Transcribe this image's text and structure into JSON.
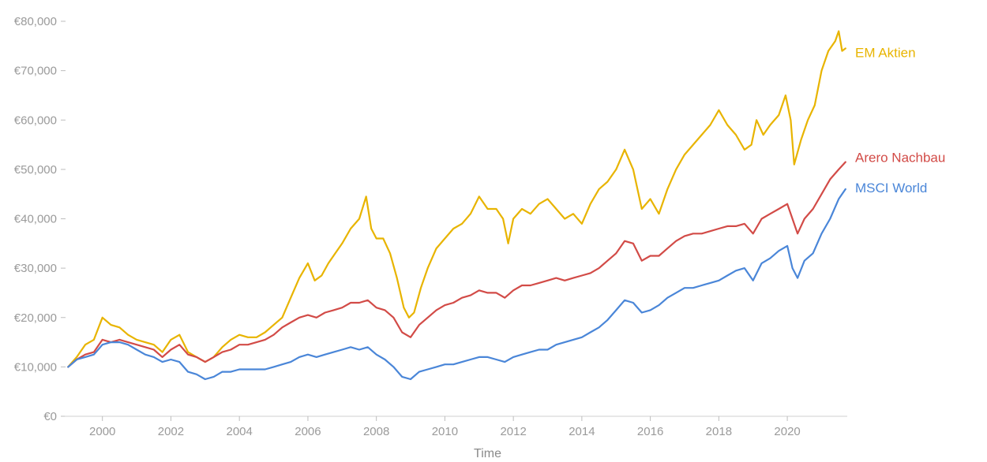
{
  "chart_data": {
    "type": "line",
    "xlabel": "Time",
    "ylabel": "",
    "xlim": [
      1998.9,
      2021.75
    ],
    "ylim": [
      0,
      80000
    ],
    "x_ticks": [
      2000,
      2002,
      2004,
      2006,
      2008,
      2010,
      2012,
      2014,
      2016,
      2018,
      2020
    ],
    "x_tick_labels": [
      "2000",
      "2002",
      "2004",
      "2006",
      "2008",
      "2010",
      "2012",
      "2014",
      "2016",
      "2018",
      "2020"
    ],
    "y_ticks": [
      0,
      10000,
      20000,
      30000,
      40000,
      50000,
      60000,
      70000,
      80000
    ],
    "y_tick_labels": [
      "€0",
      "€10,000",
      "€20,000",
      "€30,000",
      "€40,000",
      "€50,000",
      "€60,000",
      "€70,000",
      "€80,000"
    ],
    "grid": false,
    "legend": "inline-right",
    "series": [
      {
        "name": "EM Aktien",
        "color": "#e8b400",
        "x": [
          1999.0,
          1999.25,
          1999.5,
          1999.75,
          2000.0,
          2000.25,
          2000.5,
          2000.75,
          2001.0,
          2001.25,
          2001.5,
          2001.75,
          2002.0,
          2002.25,
          2002.5,
          2002.75,
          2003.0,
          2003.25,
          2003.5,
          2003.75,
          2004.0,
          2004.25,
          2004.5,
          2004.75,
          2005.0,
          2005.25,
          2005.5,
          2005.75,
          2006.0,
          2006.2,
          2006.4,
          2006.6,
          2006.8,
          2007.0,
          2007.25,
          2007.5,
          2007.7,
          2007.85,
          2008.0,
          2008.2,
          2008.4,
          2008.6,
          2008.8,
          2008.95,
          2009.1,
          2009.3,
          2009.5,
          2009.75,
          2010.0,
          2010.25,
          2010.5,
          2010.75,
          2011.0,
          2011.25,
          2011.5,
          2011.7,
          2011.85,
          2012.0,
          2012.25,
          2012.5,
          2012.75,
          2013.0,
          2013.25,
          2013.5,
          2013.75,
          2014.0,
          2014.25,
          2014.5,
          2014.75,
          2015.0,
          2015.25,
          2015.5,
          2015.75,
          2016.0,
          2016.25,
          2016.5,
          2016.75,
          2017.0,
          2017.25,
          2017.5,
          2017.75,
          2018.0,
          2018.25,
          2018.5,
          2018.75,
          2018.95,
          2019.1,
          2019.3,
          2019.5,
          2019.75,
          2019.95,
          2020.1,
          2020.2,
          2020.4,
          2020.6,
          2020.8,
          2021.0,
          2021.2,
          2021.4,
          2021.5,
          2021.6,
          2021.7
        ],
        "values": [
          10000,
          12000,
          14500,
          15500,
          20000,
          18500,
          18000,
          16500,
          15500,
          15000,
          14500,
          13000,
          15500,
          16500,
          13000,
          12000,
          11000,
          12000,
          14000,
          15500,
          16500,
          16000,
          16000,
          17000,
          18500,
          20000,
          24000,
          28000,
          31000,
          27500,
          28500,
          31000,
          33000,
          35000,
          38000,
          40000,
          44500,
          38000,
          36000,
          36000,
          33000,
          28000,
          22000,
          20000,
          21000,
          26000,
          30000,
          34000,
          36000,
          38000,
          39000,
          41000,
          44500,
          42000,
          42000,
          40000,
          35000,
          40000,
          42000,
          41000,
          43000,
          44000,
          42000,
          40000,
          41000,
          39000,
          43000,
          46000,
          47500,
          50000,
          54000,
          50000,
          42000,
          44000,
          41000,
          46000,
          50000,
          53000,
          55000,
          57000,
          59000,
          62000,
          59000,
          57000,
          54000,
          55000,
          60000,
          57000,
          59000,
          61000,
          65000,
          60000,
          51000,
          56000,
          60000,
          63000,
          70000,
          74000,
          76000,
          78000,
          74000,
          74500
        ]
      },
      {
        "name": "Arero Nachbau",
        "color": "#d24b47",
        "x": [
          1999.0,
          1999.25,
          1999.5,
          1999.75,
          2000.0,
          2000.25,
          2000.5,
          2000.75,
          2001.0,
          2001.25,
          2001.5,
          2001.75,
          2002.0,
          2002.25,
          2002.5,
          2002.75,
          2003.0,
          2003.25,
          2003.5,
          2003.75,
          2004.0,
          2004.25,
          2004.5,
          2004.75,
          2005.0,
          2005.25,
          2005.5,
          2005.75,
          2006.0,
          2006.25,
          2006.5,
          2006.75,
          2007.0,
          2007.25,
          2007.5,
          2007.75,
          2008.0,
          2008.25,
          2008.5,
          2008.75,
          2009.0,
          2009.25,
          2009.5,
          2009.75,
          2010.0,
          2010.25,
          2010.5,
          2010.75,
          2011.0,
          2011.25,
          2011.5,
          2011.75,
          2012.0,
          2012.25,
          2012.5,
          2012.75,
          2013.0,
          2013.25,
          2013.5,
          2013.75,
          2014.0,
          2014.25,
          2014.5,
          2014.75,
          2015.0,
          2015.25,
          2015.5,
          2015.75,
          2016.0,
          2016.25,
          2016.5,
          2016.75,
          2017.0,
          2017.25,
          2017.5,
          2017.75,
          2018.0,
          2018.25,
          2018.5,
          2018.75,
          2019.0,
          2019.25,
          2019.5,
          2019.75,
          2020.0,
          2020.15,
          2020.3,
          2020.5,
          2020.75,
          2021.0,
          2021.25,
          2021.5,
          2021.7
        ],
        "values": [
          10000,
          11500,
          12500,
          13000,
          15500,
          15000,
          15500,
          15000,
          14500,
          14000,
          13500,
          12000,
          13500,
          14500,
          12500,
          12000,
          11000,
          12000,
          13000,
          13500,
          14500,
          14500,
          15000,
          15500,
          16500,
          18000,
          19000,
          20000,
          20500,
          20000,
          21000,
          21500,
          22000,
          23000,
          23000,
          23500,
          22000,
          21500,
          20000,
          17000,
          16000,
          18500,
          20000,
          21500,
          22500,
          23000,
          24000,
          24500,
          25500,
          25000,
          25000,
          24000,
          25500,
          26500,
          26500,
          27000,
          27500,
          28000,
          27500,
          28000,
          28500,
          29000,
          30000,
          31500,
          33000,
          35500,
          35000,
          31500,
          32500,
          32500,
          34000,
          35500,
          36500,
          37000,
          37000,
          37500,
          38000,
          38500,
          38500,
          39000,
          37000,
          40000,
          41000,
          42000,
          43000,
          40000,
          37000,
          40000,
          42000,
          45000,
          48000,
          50000,
          51500
        ]
      },
      {
        "name": "MSCI World",
        "color": "#4a86d8",
        "x": [
          1999.0,
          1999.25,
          1999.5,
          1999.75,
          2000.0,
          2000.25,
          2000.5,
          2000.75,
          2001.0,
          2001.25,
          2001.5,
          2001.75,
          2002.0,
          2002.25,
          2002.5,
          2002.75,
          2003.0,
          2003.25,
          2003.5,
          2003.75,
          2004.0,
          2004.25,
          2004.5,
          2004.75,
          2005.0,
          2005.25,
          2005.5,
          2005.75,
          2006.0,
          2006.25,
          2006.5,
          2006.75,
          2007.0,
          2007.25,
          2007.5,
          2007.75,
          2008.0,
          2008.25,
          2008.5,
          2008.75,
          2009.0,
          2009.25,
          2009.5,
          2009.75,
          2010.0,
          2010.25,
          2010.5,
          2010.75,
          2011.0,
          2011.25,
          2011.5,
          2011.75,
          2012.0,
          2012.25,
          2012.5,
          2012.75,
          2013.0,
          2013.25,
          2013.5,
          2013.75,
          2014.0,
          2014.25,
          2014.5,
          2014.75,
          2015.0,
          2015.25,
          2015.5,
          2015.75,
          2016.0,
          2016.25,
          2016.5,
          2016.75,
          2017.0,
          2017.25,
          2017.5,
          2017.75,
          2018.0,
          2018.25,
          2018.5,
          2018.75,
          2019.0,
          2019.25,
          2019.5,
          2019.75,
          2020.0,
          2020.15,
          2020.3,
          2020.5,
          2020.75,
          2021.0,
          2021.25,
          2021.5,
          2021.7
        ],
        "values": [
          10000,
          11500,
          12000,
          12500,
          14500,
          15000,
          15000,
          14500,
          13500,
          12500,
          12000,
          11000,
          11500,
          11000,
          9000,
          8500,
          7500,
          8000,
          9000,
          9000,
          9500,
          9500,
          9500,
          9500,
          10000,
          10500,
          11000,
          12000,
          12500,
          12000,
          12500,
          13000,
          13500,
          14000,
          13500,
          14000,
          12500,
          11500,
          10000,
          8000,
          7500,
          9000,
          9500,
          10000,
          10500,
          10500,
          11000,
          11500,
          12000,
          12000,
          11500,
          11000,
          12000,
          12500,
          13000,
          13500,
          13500,
          14500,
          15000,
          15500,
          16000,
          17000,
          18000,
          19500,
          21500,
          23500,
          23000,
          21000,
          21500,
          22500,
          24000,
          25000,
          26000,
          26000,
          26500,
          27000,
          27500,
          28500,
          29500,
          30000,
          27500,
          31000,
          32000,
          33500,
          34500,
          30000,
          28000,
          31500,
          33000,
          37000,
          40000,
          44000,
          46000
        ]
      }
    ]
  }
}
